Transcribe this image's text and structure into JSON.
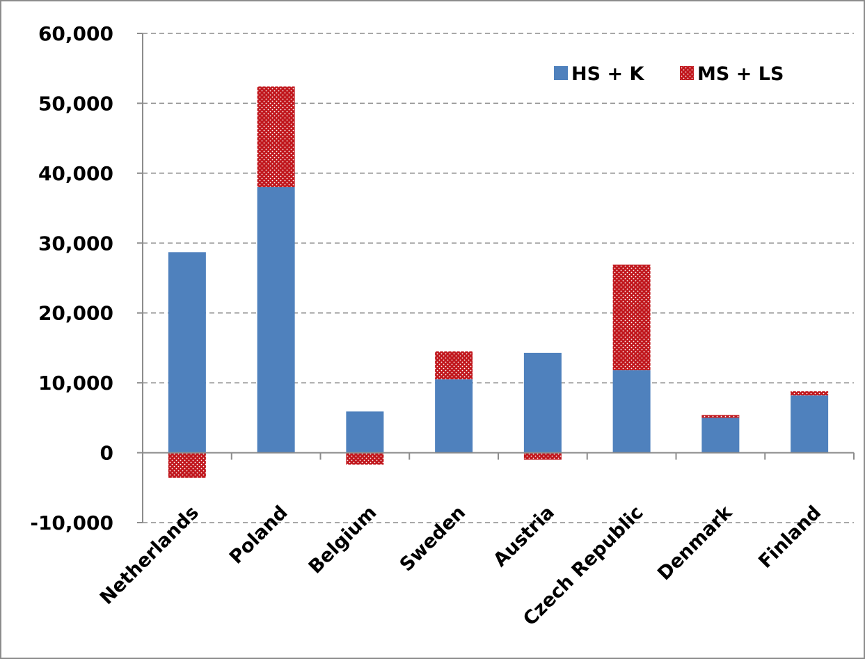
{
  "chart_data": {
    "type": "bar",
    "stacked": true,
    "categories": [
      "Netherlands",
      "Poland",
      "Belgium",
      "Sweden",
      "Austria",
      "Czech Republic",
      "Denmark",
      "Finland"
    ],
    "series": [
      {
        "name": "HS + K",
        "values": [
          28700,
          38000,
          5900,
          10500,
          14300,
          11800,
          5000,
          8200
        ],
        "color": "#4f81bd"
      },
      {
        "name": "MS + LS",
        "values": [
          -3600,
          14400,
          -1700,
          4000,
          -1000,
          15100,
          400,
          600
        ],
        "color": "#c0161c"
      }
    ],
    "ylim": [
      -10000,
      60000
    ],
    "yticks": [
      "-10,000",
      "0",
      "10,000",
      "20,000",
      "30,000",
      "40,000",
      "50,000",
      "60,000"
    ],
    "ytick_values": [
      -10000,
      0,
      10000,
      20000,
      30000,
      40000,
      50000,
      60000
    ],
    "grid": true,
    "legend_position": "top-right",
    "title": "",
    "xlabel": "",
    "ylabel": ""
  }
}
